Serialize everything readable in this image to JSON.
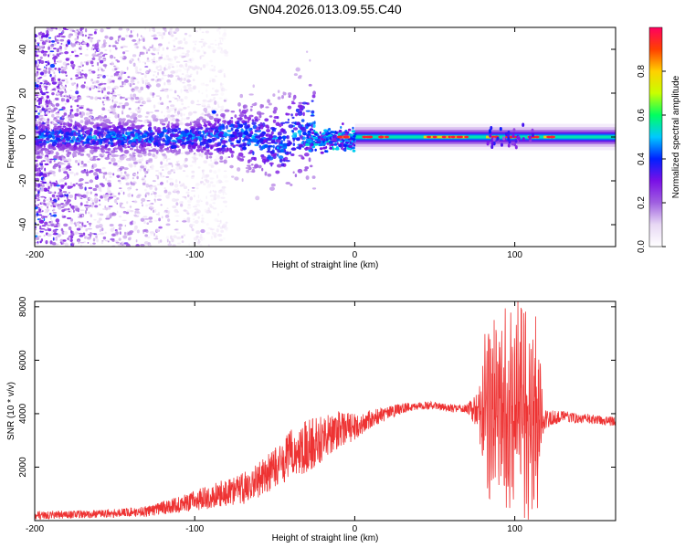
{
  "title": "GN04.2026.013.09.55.C40",
  "chart_data": [
    {
      "type": "heatmap",
      "xlabel": "Height of straight line (km)",
      "ylabel": "Frequency (Hz)",
      "xlim": [
        -200,
        163
      ],
      "ylim": [
        -50,
        50
      ],
      "x_ticks": [
        -200,
        -100,
        0,
        100
      ],
      "y_ticks": [
        -40,
        -20,
        0,
        20,
        40
      ],
      "colorbar": {
        "label": "Normalized spectral amplitude",
        "range": [
          0,
          1
        ],
        "ticks": [
          0.0,
          0.2,
          0.4,
          0.6,
          0.8
        ],
        "tick_labels": [
          "0.0",
          "0.2",
          "0.4",
          "0.6",
          "0.8"
        ],
        "colors": [
          "#ffffff",
          "#e8d8f4",
          "#a060e0",
          "#7a10e6",
          "#0020ff",
          "#00c8ff",
          "#00ff60",
          "#c8ff00",
          "#ffd000",
          "#ff4000",
          "#ff0060"
        ]
      },
      "features": {
        "noise_region_x": [
          -200,
          -130
        ],
        "band_center_hz": 0,
        "band_x": [
          -30,
          163
        ],
        "band_halfwidth_hz": 2
      }
    },
    {
      "type": "line",
      "xlabel": "Height of straight line (km)",
      "ylabel": "SNR (10 * v/v)",
      "xlim": [
        -200,
        163
      ],
      "ylim": [
        0,
        8200
      ],
      "x_ticks": [
        -200,
        -100,
        0,
        100
      ],
      "y_ticks": [
        2000,
        4000,
        6000,
        8000
      ],
      "color": "#ee3333",
      "envelope_x": [
        -200,
        -160,
        -130,
        -110,
        -90,
        -70,
        -50,
        -40,
        -30,
        -20,
        -10,
        0,
        10,
        20,
        30,
        40,
        50,
        60,
        70,
        78,
        82,
        86,
        90,
        94,
        98,
        102,
        106,
        110,
        114,
        118,
        130,
        145,
        163
      ],
      "envelope_y": [
        200,
        250,
        350,
        600,
        900,
        1200,
        1900,
        2500,
        2800,
        3100,
        3400,
        3500,
        3800,
        4000,
        4200,
        4300,
        4300,
        4200,
        4200,
        4100,
        4200,
        4000,
        3900,
        4100,
        4000,
        3900,
        4000,
        4100,
        3900,
        3800,
        3900,
        3800,
        3700
      ],
      "noise_amp": [
        150,
        150,
        200,
        300,
        450,
        600,
        800,
        900,
        1000,
        900,
        700,
        500,
        350,
        250,
        200,
        150,
        150,
        150,
        150,
        800,
        2500,
        2800,
        2700,
        2600,
        2600,
        2400,
        2800,
        2700,
        2500,
        400,
        200,
        180,
        180
      ]
    }
  ]
}
